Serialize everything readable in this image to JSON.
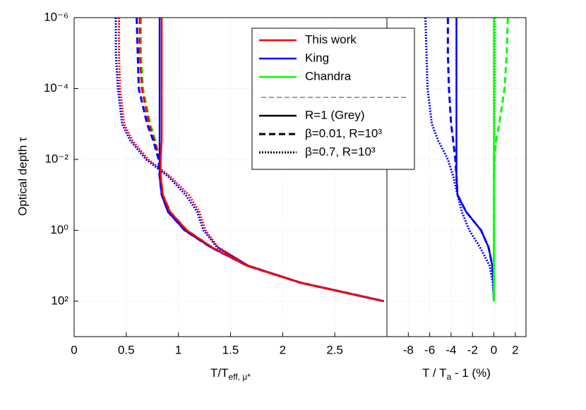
{
  "chart_data": [
    {
      "type": "line",
      "xlabel": {
        "text": "T/T",
        "sub": "eff, μ*"
      },
      "ylabel": "Optical depth τ",
      "xlim": [
        0,
        3
      ],
      "xticks": [
        0,
        0.5,
        1,
        1.5,
        2,
        2.5
      ],
      "ylim": [
        1e-06,
        1000
      ],
      "ylog": true,
      "y_inverted": true,
      "yticks": [
        {
          "value": 1e-06,
          "label": "10⁻⁶"
        },
        {
          "value": 0.0001,
          "label": "10⁻⁴"
        },
        {
          "value": 0.01,
          "label": "10⁻²"
        },
        {
          "value": 1,
          "label": "10⁰"
        },
        {
          "value": 100,
          "label": "10²"
        }
      ],
      "grid": true,
      "y": [
        1e-06,
        1e-05,
        0.0001,
        0.001,
        0.003,
        0.01,
        0.03,
        0.1,
        0.3,
        1,
        3,
        10,
        30,
        100
      ],
      "series": [
        {
          "color": "#ff0000",
          "dash": "dotted",
          "values": [
            0.43,
            0.43,
            0.44,
            0.48,
            0.56,
            0.71,
            0.92,
            1.1,
            1.2,
            1.26,
            1.38,
            1.67,
            2.17,
            2.97
          ]
        },
        {
          "color": "#0000ff",
          "dash": "dotted",
          "values": [
            0.4,
            0.4,
            0.42,
            0.46,
            0.54,
            0.69,
            0.9,
            1.07,
            1.18,
            1.24,
            1.37,
            1.67,
            2.17,
            2.97
          ]
        },
        {
          "color": "#00ff00",
          "dash": "dashed",
          "values": [
            0.64,
            0.64,
            0.66,
            0.73,
            0.78,
            0.82,
            0.83,
            0.85,
            0.92,
            1.08,
            1.32,
            1.66,
            2.17,
            2.97
          ]
        },
        {
          "color": "#ff0000",
          "dash": "dashed",
          "values": [
            0.63,
            0.63,
            0.65,
            0.72,
            0.77,
            0.82,
            0.83,
            0.85,
            0.92,
            1.08,
            1.32,
            1.66,
            2.17,
            2.97
          ]
        },
        {
          "color": "#0000ff",
          "dash": "dashed",
          "values": [
            0.6,
            0.61,
            0.62,
            0.7,
            0.76,
            0.81,
            0.82,
            0.84,
            0.9,
            1.06,
            1.31,
            1.66,
            2.17,
            2.97
          ]
        },
        {
          "color": "#0000ff",
          "dash": "solid",
          "values": [
            0.82,
            0.82,
            0.82,
            0.82,
            0.82,
            0.82,
            0.82,
            0.84,
            0.9,
            1.06,
            1.31,
            1.66,
            2.17,
            2.97
          ]
        },
        {
          "color": "#ff0000",
          "dash": "solid",
          "values": [
            0.84,
            0.84,
            0.84,
            0.84,
            0.84,
            0.83,
            0.83,
            0.85,
            0.92,
            1.08,
            1.32,
            1.66,
            2.17,
            2.97
          ]
        }
      ]
    },
    {
      "type": "line",
      "xlabel": {
        "text": "T / T",
        "sub": "a",
        "rest": " - 1 (%)"
      },
      "xlim": [
        -10,
        3
      ],
      "xticks": [
        -8,
        -6,
        -4,
        -2,
        0,
        2
      ],
      "ylim": [
        1e-06,
        1000
      ],
      "ylog": true,
      "y_inverted": true,
      "grid": true,
      "y": [
        1e-06,
        1e-05,
        0.0001,
        0.001,
        0.003,
        0.01,
        0.03,
        0.1,
        0.3,
        1,
        3,
        10,
        30,
        100
      ],
      "series": [
        {
          "color": "#0000ff",
          "dash": "dotted",
          "values": [
            -6.4,
            -6.3,
            -6.2,
            -5.8,
            -5.2,
            -4.3,
            -3.8,
            -3.4,
            -3.0,
            -2.3,
            -1.3,
            -0.4,
            -0.1,
            0
          ]
        },
        {
          "color": "#0000ff",
          "dash": "dashed",
          "values": [
            -4.3,
            -4.3,
            -4.2,
            -4.0,
            -3.8,
            -3.6,
            -3.5,
            -3.4,
            -2.6,
            -1.2,
            -0.5,
            -0.15,
            -0.05,
            0
          ]
        },
        {
          "color": "#0000ff",
          "dash": "solid",
          "values": [
            -3.5,
            -3.5,
            -3.5,
            -3.5,
            -3.5,
            -3.5,
            -3.5,
            -3.4,
            -2.6,
            -1.2,
            -0.5,
            -0.15,
            -0.05,
            0
          ]
        },
        {
          "color": "#00ff00",
          "dash": "dotted",
          "values": [
            0.1,
            0.1,
            0.1,
            0.05,
            0.05,
            0,
            0,
            0,
            0,
            0,
            0,
            0,
            0,
            0
          ]
        },
        {
          "color": "#00ff00",
          "dash": "dashed",
          "values": [
            1.3,
            1.2,
            1.0,
            0.5,
            0.2,
            0.05,
            0,
            0,
            0,
            0,
            0,
            0,
            0,
            0
          ]
        },
        {
          "color": "#00ff00",
          "dash": "solid",
          "values": [
            0,
            0,
            0,
            0,
            0,
            0,
            0,
            0,
            0,
            0,
            0,
            0,
            0,
            0
          ]
        }
      ]
    }
  ],
  "legend": {
    "entries": [
      {
        "name": "This work",
        "color": "#ff0000"
      },
      {
        "name": "King",
        "color": "#0000ff"
      },
      {
        "name": "Chandra",
        "color": "#00ff00"
      }
    ],
    "styles": [
      {
        "name": "R=1 (Grey)",
        "dash": "solid"
      },
      {
        "name": "β=0.01, R=10³",
        "dash": "dashed"
      },
      {
        "name": "β=0.7, R=10³",
        "dash": "dotted"
      }
    ]
  }
}
